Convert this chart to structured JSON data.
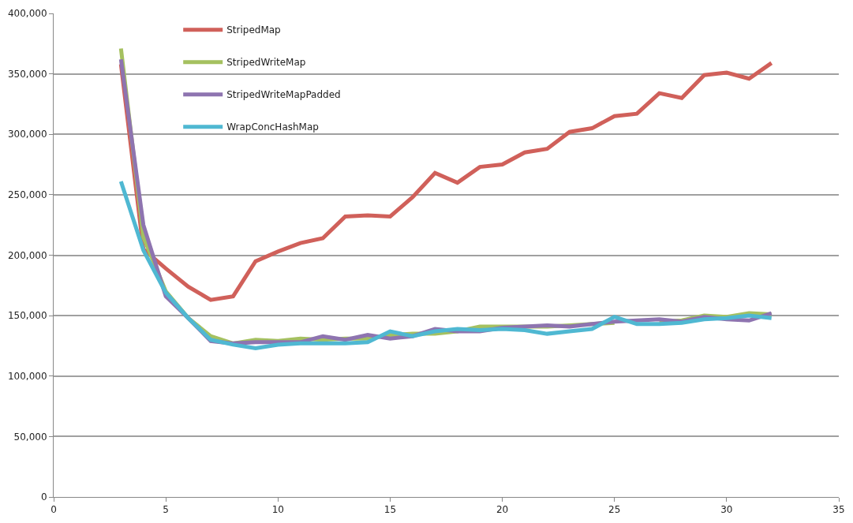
{
  "chart_data": {
    "type": "line",
    "x": [
      3,
      4,
      5,
      6,
      7,
      8,
      9,
      10,
      11,
      12,
      13,
      14,
      15,
      16,
      17,
      18,
      19,
      20,
      21,
      22,
      23,
      24,
      25,
      26,
      27,
      28,
      29,
      30,
      31,
      32
    ],
    "series": [
      {
        "name": "StripedMap",
        "color": "#d0605a",
        "values": [
          358000,
          205000,
          189000,
          174000,
          163000,
          166000,
          195000,
          203000,
          210000,
          214000,
          232000,
          233000,
          232000,
          248000,
          268000,
          260000,
          273000,
          275000,
          285000,
          288000,
          302000,
          305000,
          315000,
          317000,
          334000,
          330000,
          349000,
          351000,
          346000,
          359000
        ]
      },
      {
        "name": "StripedWriteMap",
        "color": "#a5c160",
        "values": [
          371000,
          215000,
          170000,
          148000,
          133000,
          127000,
          130000,
          129000,
          131000,
          130000,
          131000,
          131000,
          134000,
          135000,
          135000,
          137000,
          141000,
          141000,
          141000,
          141000,
          142000,
          143000,
          144000,
          null,
          145000,
          146000,
          150000,
          149000,
          152000,
          151000
        ]
      },
      {
        "name": "StripedWriteMapPadded",
        "color": "#8e74b0",
        "values": [
          362000,
          225000,
          166000,
          148000,
          129000,
          127000,
          128000,
          128000,
          128000,
          133000,
          130000,
          134000,
          131000,
          133000,
          139000,
          137000,
          137000,
          140000,
          141000,
          142000,
          141000,
          143000,
          145000,
          146000,
          147000,
          145000,
          149000,
          147000,
          146000,
          152000
        ]
      },
      {
        "name": "WrapConcHashMap",
        "color": "#4fb8d2",
        "values": [
          261000,
          204000,
          169000,
          148000,
          130000,
          126000,
          123000,
          126000,
          127000,
          127000,
          127000,
          128000,
          137000,
          133000,
          137000,
          139000,
          138000,
          139000,
          138000,
          135000,
          137000,
          139000,
          149000,
          143000,
          143000,
          144000,
          147000,
          148000,
          150000,
          148000
        ]
      }
    ],
    "xlim": [
      0,
      35
    ],
    "xticks": [
      0,
      5,
      10,
      15,
      20,
      25,
      30,
      35
    ],
    "ylim": [
      0,
      400000
    ],
    "yticks": [
      {
        "value": 0,
        "label": "0"
      },
      {
        "value": 50000,
        "label": "50,000"
      },
      {
        "value": 100000,
        "label": "100,000"
      },
      {
        "value": 150000,
        "label": "150,000"
      },
      {
        "value": 200000,
        "label": "200,000"
      },
      {
        "value": 250000,
        "label": "250,000"
      },
      {
        "value": 300000,
        "label": "300,000"
      },
      {
        "value": 350000,
        "label": "350,000"
      },
      {
        "value": 400000,
        "label": "400,000"
      }
    ],
    "grid": "y",
    "legend": "top left",
    "marker": "none",
    "line_style": "solid"
  }
}
